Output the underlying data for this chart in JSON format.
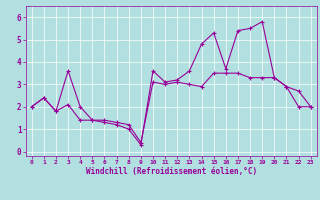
{
  "xlabel": "Windchill (Refroidissement éolien,°C)",
  "background_color": "#b2e0e0",
  "line_color": "#990099",
  "xlim": [
    -0.5,
    23.5
  ],
  "ylim": [
    -0.2,
    6.5
  ],
  "xticks": [
    0,
    1,
    2,
    3,
    4,
    5,
    6,
    7,
    8,
    9,
    10,
    11,
    12,
    13,
    14,
    15,
    16,
    17,
    18,
    19,
    20,
    21,
    22,
    23
  ],
  "yticks": [
    0,
    1,
    2,
    3,
    4,
    5,
    6
  ],
  "series1_x": [
    0,
    1,
    2,
    3,
    4,
    5,
    6,
    7,
    8,
    9,
    10,
    11,
    12,
    13,
    14,
    15,
    16,
    17,
    18,
    19,
    20,
    21,
    22,
    23
  ],
  "series1_y": [
    2.0,
    2.4,
    1.8,
    3.6,
    2.0,
    1.4,
    1.4,
    1.3,
    1.2,
    0.4,
    3.1,
    3.0,
    3.1,
    3.0,
    2.9,
    3.5,
    3.5,
    3.5,
    3.3,
    3.3,
    3.3,
    2.9,
    2.7,
    2.0
  ],
  "series2_x": [
    0,
    1,
    2,
    3,
    4,
    5,
    6,
    7,
    8,
    9,
    10,
    11,
    12,
    13,
    14,
    15,
    16,
    17,
    18,
    19,
    20,
    21,
    22,
    23
  ],
  "series2_y": [
    2.0,
    2.4,
    1.8,
    2.1,
    1.4,
    1.4,
    1.3,
    1.2,
    1.0,
    0.3,
    3.6,
    3.1,
    3.2,
    3.6,
    4.8,
    5.3,
    3.7,
    5.4,
    5.5,
    5.8,
    3.3,
    2.9,
    2.0,
    2.0
  ],
  "xlabel_fontsize": 5.5,
  "tick_fontsize_x": 4.5,
  "tick_fontsize_y": 5.5
}
